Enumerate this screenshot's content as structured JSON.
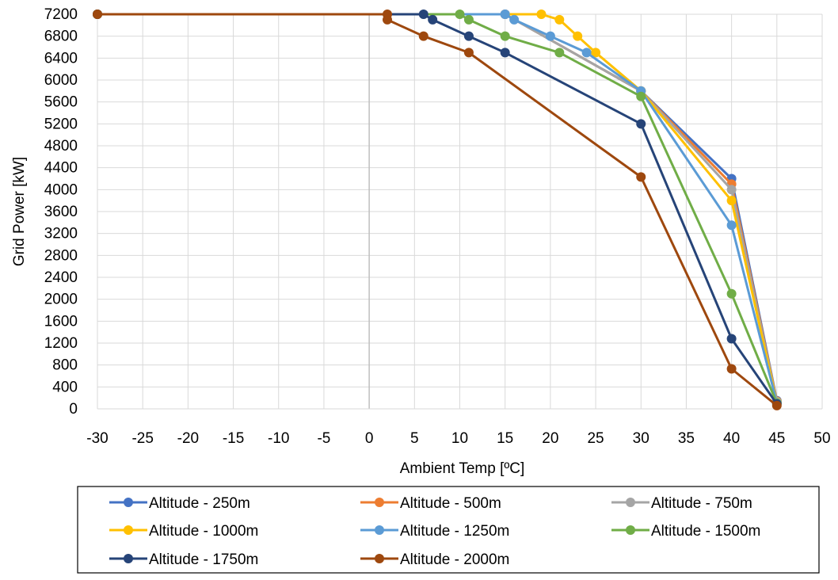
{
  "chart_data": {
    "type": "line",
    "title": "",
    "xlabel": "Ambient Temp [ºC]",
    "ylabel": "Grid Power [kW]",
    "xlim": [
      -30,
      50
    ],
    "ylim": [
      0,
      7200
    ],
    "x_ticks": [
      -30,
      -25,
      -20,
      -15,
      -10,
      -5,
      0,
      5,
      10,
      15,
      20,
      25,
      30,
      35,
      40,
      45,
      50
    ],
    "y_ticks": [
      0,
      400,
      800,
      1200,
      1600,
      2000,
      2400,
      2800,
      3200,
      3600,
      4000,
      4400,
      4800,
      5200,
      5600,
      6000,
      6400,
      6800,
      7200
    ],
    "grid": true,
    "legend_position": "bottom",
    "series": [
      {
        "name": "Altitude - 250m",
        "color": "#4472C4",
        "points": [
          [
            -30,
            7200
          ],
          [
            15,
            7200
          ],
          [
            30,
            5800
          ],
          [
            40,
            4200
          ],
          [
            45,
            150
          ]
        ]
      },
      {
        "name": "Altitude - 500m",
        "color": "#ED7D31",
        "points": [
          [
            -30,
            7200
          ],
          [
            15,
            7200
          ],
          [
            30,
            5800
          ],
          [
            40,
            4100
          ],
          [
            45,
            140
          ]
        ]
      },
      {
        "name": "Altitude - 750m",
        "color": "#A5A5A5",
        "points": [
          [
            -30,
            7200
          ],
          [
            15,
            7200
          ],
          [
            30,
            5800
          ],
          [
            40,
            4000
          ],
          [
            45,
            130
          ]
        ]
      },
      {
        "name": "Altitude - 1000m",
        "color": "#FFC000",
        "points": [
          [
            -30,
            7200
          ],
          [
            19,
            7200
          ],
          [
            21,
            7100
          ],
          [
            23,
            6800
          ],
          [
            25,
            6500
          ],
          [
            30,
            5800
          ],
          [
            40,
            3800
          ],
          [
            45,
            120
          ]
        ]
      },
      {
        "name": "Altitude - 1250m",
        "color": "#5B9BD5",
        "points": [
          [
            -30,
            7200
          ],
          [
            15,
            7200
          ],
          [
            16,
            7100
          ],
          [
            20,
            6800
          ],
          [
            24,
            6500
          ],
          [
            30,
            5800
          ],
          [
            40,
            3350
          ],
          [
            45,
            110
          ]
        ]
      },
      {
        "name": "Altitude - 1500m",
        "color": "#70AD47",
        "points": [
          [
            -30,
            7200
          ],
          [
            10,
            7200
          ],
          [
            11,
            7100
          ],
          [
            15,
            6800
          ],
          [
            21,
            6500
          ],
          [
            30,
            5700
          ],
          [
            40,
            2100
          ],
          [
            45,
            100
          ]
        ]
      },
      {
        "name": "Altitude - 1750m",
        "color": "#264478",
        "points": [
          [
            -30,
            7200
          ],
          [
            6,
            7200
          ],
          [
            7,
            7100
          ],
          [
            11,
            6800
          ],
          [
            15,
            6500
          ],
          [
            30,
            5200
          ],
          [
            40,
            1280
          ],
          [
            45,
            90
          ]
        ]
      },
      {
        "name": "Altitude - 2000m",
        "color": "#9E480E",
        "points": [
          [
            -30,
            7200
          ],
          [
            2,
            7200
          ],
          [
            2,
            7100
          ],
          [
            6,
            6800
          ],
          [
            11,
            6500
          ],
          [
            30,
            4230
          ],
          [
            40,
            730
          ],
          [
            45,
            60
          ]
        ]
      }
    ]
  }
}
